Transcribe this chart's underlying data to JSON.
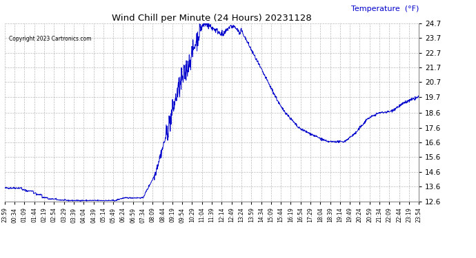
{
  "title": "Wind Chill per Minute (24 Hours) 20231128",
  "ylabel": "Temperature  (°F)",
  "copyright": "Copyright 2023 Cartronics.com",
  "line_color": "#0000cc",
  "ylabel_color": "#0000cc",
  "background_color": "#ffffff",
  "grid_color": "#aaaaaa",
  "ylim": [
    12.6,
    24.7
  ],
  "yticks": [
    12.6,
    13.6,
    14.6,
    15.6,
    16.6,
    17.6,
    18.6,
    19.7,
    20.7,
    21.7,
    22.7,
    23.7,
    24.7
  ],
  "xtick_labels": [
    "23:59",
    "00:34",
    "01:09",
    "01:44",
    "02:19",
    "02:54",
    "03:29",
    "03:39",
    "04:04",
    "04:39",
    "05:14",
    "05:49",
    "06:24",
    "06:59",
    "07:34",
    "08:09",
    "08:44",
    "09:19",
    "09:54",
    "10:29",
    "11:04",
    "11:39",
    "12:14",
    "12:49",
    "13:24",
    "13:59",
    "14:34",
    "15:09",
    "15:44",
    "16:19",
    "16:54",
    "17:29",
    "18:04",
    "18:39",
    "19:14",
    "19:49",
    "20:24",
    "20:59",
    "21:34",
    "22:09",
    "22:44",
    "23:19",
    "23:54"
  ],
  "num_points": 1440
}
